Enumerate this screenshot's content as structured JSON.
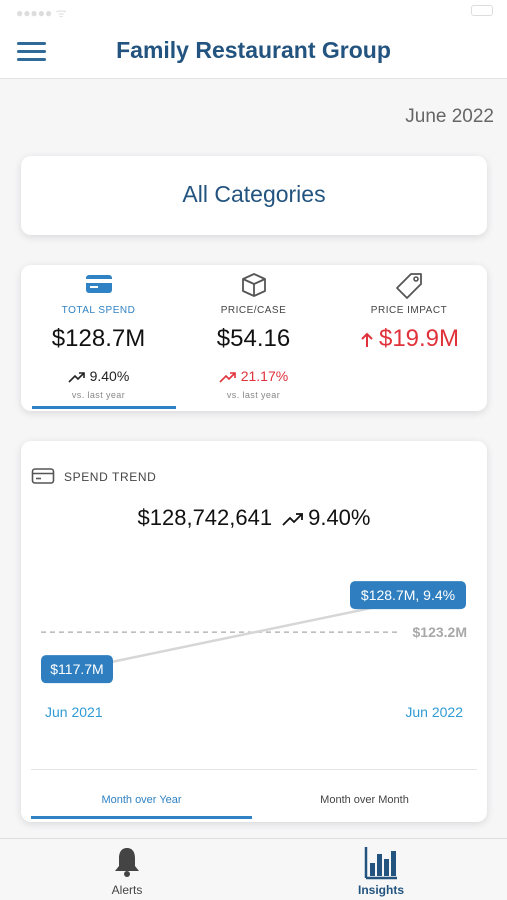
{
  "header": {
    "title": "Family Restaurant Group"
  },
  "date_label": "June 2022",
  "category_selector": {
    "label": "All Categories"
  },
  "kpis": [
    {
      "label": "TOTAL SPEND",
      "value": "$128.7M",
      "change": "9.40%",
      "sub": "vs. last year",
      "trend": "up"
    },
    {
      "label": "PRICE/CASE",
      "value": "$54.16",
      "change": "21.17%",
      "sub": "vs. last year",
      "trend": "up"
    },
    {
      "label": "PRICE IMPACT",
      "value": "$19.9M",
      "trend": "up"
    }
  ],
  "spend_trend": {
    "title": "SPEND TREND",
    "total": "$128,742,641",
    "change": "9.40",
    "percent_sign": "%",
    "start_bubble": "$117.7M",
    "end_bubble": "$128.7M, 9.4%",
    "reference_label": "$123.2M",
    "start_label": "Jun 2021",
    "end_label": "Jun 2022"
  },
  "chart_data": {
    "type": "line",
    "x": [
      "Jun 2021",
      "Jun 2022"
    ],
    "series": [
      {
        "values": [
          117.7,
          128.7
        ]
      }
    ],
    "reference_line": 123.2,
    "ylim": [
      110,
      136
    ],
    "annotations": [
      "$117.7M",
      "$128.7M, 9.4%",
      "$123.2M"
    ],
    "colors": {
      "line": "#d6d6d6",
      "bubble": "#2f7fc0",
      "reference": "#a8a8a8",
      "axis_label": "#2f9bd6"
    }
  },
  "tabs": [
    {
      "label": "Month over Year",
      "active": true
    },
    {
      "label": "Month over Month",
      "active": false
    }
  ],
  "bottom_nav": [
    {
      "label": "Alerts",
      "icon": "bell-icon"
    },
    {
      "label": "Insights",
      "icon": "bar-chart-icon",
      "active": true
    }
  ],
  "colors": {
    "brand": "#23547f",
    "accent": "#2f82c3",
    "negative": "#e0323a"
  }
}
